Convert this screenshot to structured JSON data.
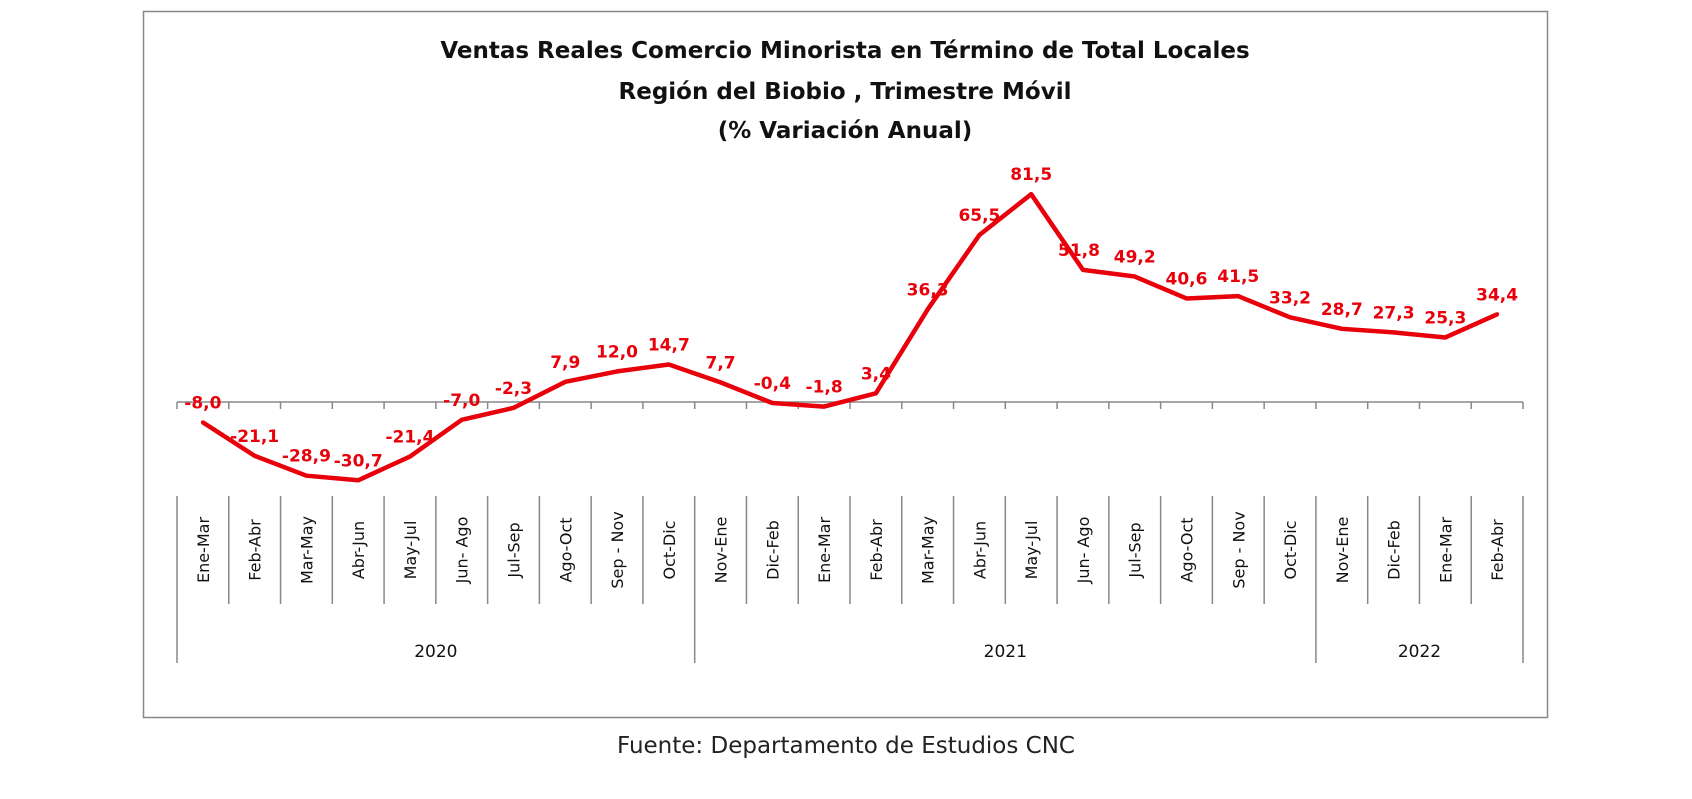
{
  "chart_data": {
    "type": "line",
    "title": [
      "Ventas Reales Comercio Minorista  en Término de Total Locales",
      "Región del Biobio , Trimestre Móvil",
      "(% Variación Anual)"
    ],
    "categories": [
      "Ene-Mar",
      "Feb-Abr",
      "Mar-May",
      "Abr-Jun",
      "May-Jul",
      "Jun- Ago",
      "Jul-Sep",
      "Ago-Oct",
      "Sep - Nov",
      "Oct-Dic",
      "Nov-Ene",
      "Dic-Feb",
      "Ene-Mar",
      "Feb-Abr",
      "Mar-May",
      "Abr-Jun",
      "May-Jul",
      "Jun- Ago",
      "Jul-Sep",
      "Ago-Oct",
      "Sep - Nov",
      "Oct-Dic",
      "Nov-Ene",
      "Dic-Feb",
      "Ene-Mar",
      "Feb-Abr"
    ],
    "groups": [
      {
        "label": "2020",
        "count": 10
      },
      {
        "label": "2021",
        "count": 12
      },
      {
        "label": "2022",
        "count": 4
      }
    ],
    "series": [
      {
        "name": "% Variación Anual",
        "color": "#e8000b",
        "values": [
          -8.0,
          -21.1,
          -28.9,
          -30.7,
          -21.4,
          -7.0,
          -2.3,
          7.9,
          12.0,
          14.7,
          7.7,
          -0.4,
          -1.8,
          3.4,
          36.3,
          65.5,
          81.5,
          51.8,
          49.2,
          40.6,
          41.5,
          33.2,
          28.7,
          27.3,
          25.3,
          34.4
        ],
        "labels": [
          "-8,0",
          "-21,1",
          "-28,9",
          "-30,7",
          "-21,4",
          "-7,0",
          "-2,3",
          "7,9",
          "12,0",
          "14,7",
          "7,7",
          "-0,4",
          "-1,8",
          "3,4",
          "36,3",
          "65,5",
          "81,5",
          "51,8",
          "49,2",
          "40,6",
          "41,5",
          "33,2",
          "28,7",
          "27,3",
          "25,3",
          "34,4"
        ]
      }
    ],
    "xlabel": "",
    "ylabel": "",
    "grid": false,
    "legend": "none"
  },
  "source": "Fuente: Departamento de Estudios CNC"
}
